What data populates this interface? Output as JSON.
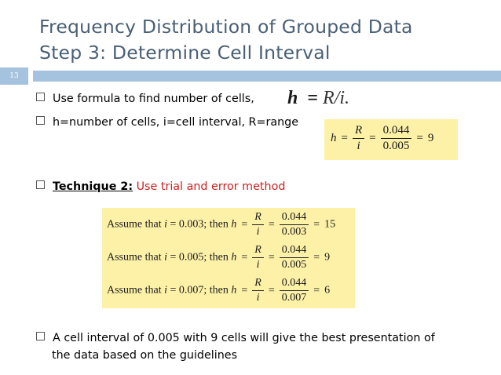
{
  "slide": {
    "number": "13",
    "title_line1": "Frequency Distribution of Grouped Data",
    "title_line2": "Step 3: Determine Cell Interval",
    "colors": {
      "title": "#4a6076",
      "bar": "#a5c3de",
      "highlight": "#fdf1a8",
      "red": "#cc1f1f"
    }
  },
  "bullets": {
    "b1": "Use formula to find number of cells,",
    "b2": "h=number of cells, i=cell interval, R=range",
    "b3_label": "Technique 2:",
    "b3_text": " Use trial and error method",
    "b4_line1": "A cell interval of 0.005 with 9 cells will give the best presentation of",
    "b4_line2": "the data based on the guidelines"
  },
  "formula_inline": {
    "h": "h",
    "eq": "=",
    "rhs": "R/i."
  },
  "formula_box": {
    "h": "h",
    "eq": "=",
    "num1": "R",
    "den1": "i",
    "num2": "0.044",
    "den2": "0.005",
    "result": "9"
  },
  "trials": [
    {
      "prefix": "Assume that ",
      "i": "i",
      "eq1": " = 0.003; then ",
      "h": "h",
      "num1": "R",
      "den1": "i",
      "num2": "0.044",
      "den2": "0.003",
      "result": "15"
    },
    {
      "prefix": "Assume that ",
      "i": "i",
      "eq1": " = 0.005; then ",
      "h": "h",
      "num1": "R",
      "den1": "i",
      "num2": "0.044",
      "den2": "0.005",
      "result": "9"
    },
    {
      "prefix": "Assume that ",
      "i": "i",
      "eq1": " = 0.007; then ",
      "h": "h",
      "num1": "R",
      "den1": "i",
      "num2": "0.044",
      "den2": "0.007",
      "result": "6"
    }
  ]
}
